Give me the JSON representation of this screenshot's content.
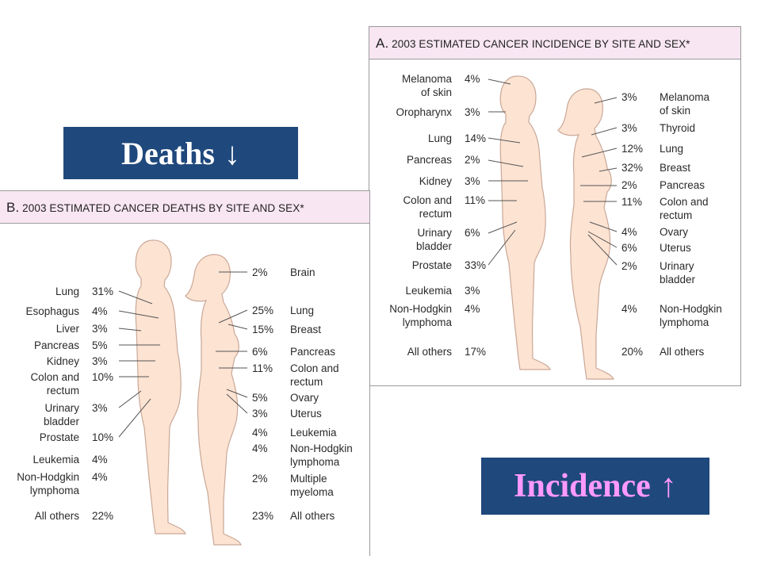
{
  "banners": {
    "deaths": {
      "text": "Deaths",
      "arrow": "↓",
      "color": "#ffffff"
    },
    "incidence": {
      "text": "Incidence",
      "arrow": "↑",
      "color": "#ff99ff"
    },
    "background": "#1f487c"
  },
  "colors": {
    "skin": "#fde3d2",
    "skin_outline": "#c9a898",
    "header_bg": "#f8e6f2"
  },
  "panel_a": {
    "letter": "A.",
    "title": "2003 ESTIMATED CANCER INCIDENCE BY SITE AND SEX*",
    "male": [
      {
        "site": "Melanoma\nof skin",
        "pct": "4%"
      },
      {
        "site": "Oropharynx",
        "pct": "3%"
      },
      {
        "site": "Lung",
        "pct": "14%"
      },
      {
        "site": "Pancreas",
        "pct": "2%"
      },
      {
        "site": "Kidney",
        "pct": "3%"
      },
      {
        "site": "Colon and\nrectum",
        "pct": "11%"
      },
      {
        "site": "Urinary\nbladder",
        "pct": "6%"
      },
      {
        "site": "Prostate",
        "pct": "33%"
      },
      {
        "site": "Leukemia",
        "pct": "3%"
      },
      {
        "site": "Non-Hodgkin\nlymphoma",
        "pct": "4%"
      },
      {
        "site": "All others",
        "pct": "17%"
      }
    ],
    "female": [
      {
        "site": "Melanoma\nof skin",
        "pct": "3%"
      },
      {
        "site": "Thyroid",
        "pct": "3%"
      },
      {
        "site": "Lung",
        "pct": "12%"
      },
      {
        "site": "Breast",
        "pct": "32%"
      },
      {
        "site": "Pancreas",
        "pct": "2%"
      },
      {
        "site": "Colon and\nrectum",
        "pct": "11%"
      },
      {
        "site": "Ovary",
        "pct": "4%"
      },
      {
        "site": "Uterus",
        "pct": "6%"
      },
      {
        "site": "Urinary\nbladder",
        "pct": "2%"
      },
      {
        "site": "Non-Hodgkin\nlymphoma",
        "pct": "4%"
      },
      {
        "site": "All others",
        "pct": "20%"
      }
    ]
  },
  "panel_b": {
    "letter": "B.",
    "title": "2003 ESTIMATED CANCER DEATHS BY SITE AND SEX*",
    "male": [
      {
        "site": "Lung",
        "pct": "31%"
      },
      {
        "site": "Esophagus",
        "pct": "4%"
      },
      {
        "site": "Liver",
        "pct": "3%"
      },
      {
        "site": "Pancreas",
        "pct": "5%"
      },
      {
        "site": "Kidney",
        "pct": "3%"
      },
      {
        "site": "Colon and\nrectum",
        "pct": "10%"
      },
      {
        "site": "Urinary\nbladder",
        "pct": "3%"
      },
      {
        "site": "Prostate",
        "pct": "10%"
      },
      {
        "site": "Leukemia",
        "pct": "4%"
      },
      {
        "site": "Non-Hodgkin\nlymphoma",
        "pct": "4%"
      },
      {
        "site": "All others",
        "pct": "22%"
      }
    ],
    "female": [
      {
        "site": "Brain",
        "pct": "2%"
      },
      {
        "site": "Lung",
        "pct": "25%"
      },
      {
        "site": "Breast",
        "pct": "15%"
      },
      {
        "site": "Pancreas",
        "pct": "6%"
      },
      {
        "site": "Colon and\nrectum",
        "pct": "11%"
      },
      {
        "site": "Ovary",
        "pct": "5%"
      },
      {
        "site": "Uterus",
        "pct": "3%"
      },
      {
        "site": "Leukemia",
        "pct": "4%"
      },
      {
        "site": "Non-Hodgkin\nlymphoma",
        "pct": "4%"
      },
      {
        "site": "Multiple\nmyeloma",
        "pct": "2%"
      },
      {
        "site": "All others",
        "pct": "23%"
      }
    ]
  }
}
